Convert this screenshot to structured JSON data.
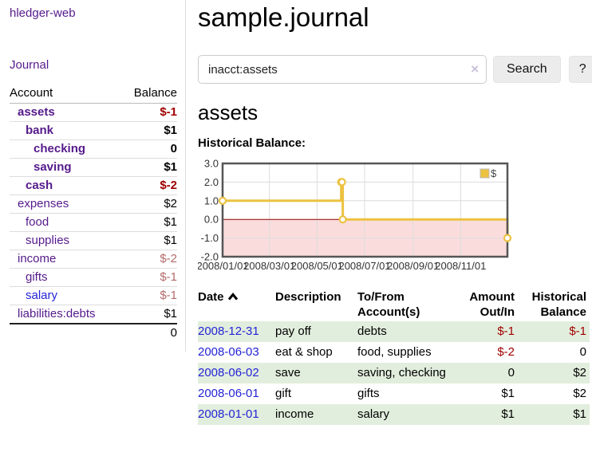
{
  "sidebar": {
    "brand": "hledger-web",
    "journal_label": "Journal",
    "accounts_table": {
      "headers": {
        "account": "Account",
        "balance": "Balance"
      },
      "rows": [
        {
          "name": "assets",
          "balance": "$-1",
          "indent": 0,
          "bold": true,
          "negative": true,
          "link_color": "purple"
        },
        {
          "name": "bank",
          "balance": "$1",
          "indent": 1,
          "bold": true,
          "negative": false,
          "link_color": "purple"
        },
        {
          "name": "checking",
          "balance": "0",
          "indent": 2,
          "bold": true,
          "negative": false,
          "link_color": "purple"
        },
        {
          "name": "saving",
          "balance": "$1",
          "indent": 2,
          "bold": true,
          "negative": false,
          "link_color": "purple"
        },
        {
          "name": "cash",
          "balance": "$-2",
          "indent": 1,
          "bold": true,
          "negative": true,
          "link_color": "purple"
        },
        {
          "name": "expenses",
          "balance": "$2",
          "indent": 0,
          "bold": false,
          "negative": false,
          "link_color": "purple"
        },
        {
          "name": "food",
          "balance": "$1",
          "indent": 1,
          "bold": false,
          "negative": false,
          "link_color": "purple"
        },
        {
          "name": "supplies",
          "balance": "$1",
          "indent": 1,
          "bold": false,
          "negative": false,
          "link_color": "purple"
        },
        {
          "name": "income",
          "balance": "$-2",
          "indent": 0,
          "bold": false,
          "negative": true,
          "link_color": "purple"
        },
        {
          "name": "gifts",
          "balance": "$-1",
          "indent": 1,
          "bold": false,
          "negative": true,
          "link_color": "purple"
        },
        {
          "name": "salary",
          "balance": "$-1",
          "indent": 1,
          "bold": false,
          "negative": true,
          "link_color": "blue"
        },
        {
          "name": "liabilities:debts",
          "balance": "$1",
          "indent": 0,
          "bold": false,
          "negative": false,
          "link_color": "purple"
        }
      ],
      "total": "0"
    }
  },
  "header": {
    "title": "sample.journal"
  },
  "search": {
    "value": "inacct:assets",
    "clear_icon": "×",
    "button_label": "Search",
    "help_label": "?"
  },
  "account_page": {
    "heading": "assets",
    "chart_label": "Historical Balance:"
  },
  "chart_data": {
    "type": "line",
    "title": "Historical Balance:",
    "style": "step-after line with open circle markers, area below zero shaded",
    "series": [
      {
        "name": "$",
        "color": "#edc240",
        "points": [
          {
            "date": "2008-01-01",
            "day": 0,
            "value": 1
          },
          {
            "date": "2008-06-01",
            "day": 152,
            "value": 2
          },
          {
            "date": "2008-06-02",
            "day": 153,
            "value": 2
          },
          {
            "date": "2008-06-03",
            "day": 154,
            "value": 0
          },
          {
            "date": "2008-12-31",
            "day": 365,
            "value": -1
          }
        ]
      }
    ],
    "ylim": [
      -2,
      3
    ],
    "y_ticks": [
      3.0,
      2.0,
      1.0,
      0.0,
      -1.0,
      -2.0
    ],
    "x_range_days": 365,
    "x_ticks": [
      {
        "label": "2008/01/01",
        "day": 0
      },
      {
        "label": "2008/03/01",
        "day": 60
      },
      {
        "label": "2008/05/01",
        "day": 121
      },
      {
        "label": "2008/07/01",
        "day": 182
      },
      {
        "label": "2008/09/01",
        "day": 244
      },
      {
        "label": "2008/11/01",
        "day": 305
      }
    ],
    "grid": true,
    "grid_color": "#dcdcdc",
    "plot_border_color": "#555555",
    "zero_line_color": "#8b0000",
    "negative_region_fill": "#fbdcdc",
    "legend": {
      "label": "$",
      "swatch_color": "#edc240",
      "position": "top-right"
    }
  },
  "register_table": {
    "headers": {
      "date": "Date",
      "sort_icon": "chevron-up",
      "description": "Description",
      "accounts": "To/From Account(s)",
      "amount": "Amount Out/In",
      "balance": "Historical Balance"
    },
    "rows": [
      {
        "date": "2008-12-31",
        "description": "pay off",
        "accounts": "debts",
        "amount": "$-1",
        "amount_negative": true,
        "balance": "$-1",
        "balance_negative": true,
        "shade": true
      },
      {
        "date": "2008-06-03",
        "description": "eat & shop",
        "accounts": "food, supplies",
        "amount": "$-2",
        "amount_negative": true,
        "balance": "0",
        "balance_negative": false,
        "shade": false
      },
      {
        "date": "2008-06-02",
        "description": "save",
        "accounts": "saving, checking",
        "amount": "0",
        "amount_negative": false,
        "balance": "$2",
        "balance_negative": false,
        "shade": true
      },
      {
        "date": "2008-06-01",
        "description": "gift",
        "accounts": "gifts",
        "amount": "$1",
        "amount_negative": false,
        "balance": "$2",
        "balance_negative": false,
        "shade": false
      },
      {
        "date": "2008-01-01",
        "description": "income",
        "accounts": "salary",
        "amount": "$1",
        "amount_negative": false,
        "balance": "$1",
        "balance_negative": false,
        "shade": true
      }
    ]
  }
}
